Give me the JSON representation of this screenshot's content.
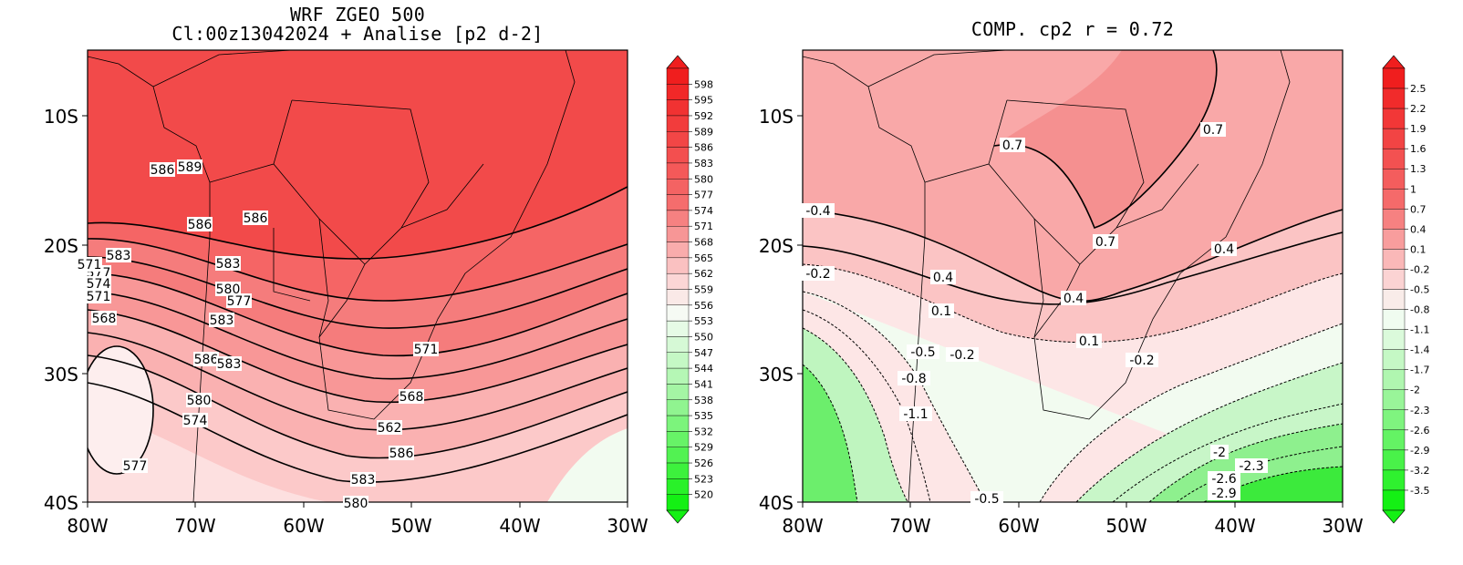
{
  "left_panel": {
    "title_line1": "WRF ZGEO 500",
    "title_line2": "Cl:00z13042024 + Analise  [p2 d-2]",
    "lat_ticks": [
      "10S",
      "20S",
      "30S",
      "40S"
    ],
    "lon_ticks": [
      "80W",
      "70W",
      "60W",
      "50W",
      "40W",
      "30W"
    ],
    "colorbar_labels": [
      "598",
      "595",
      "592",
      "589",
      "586",
      "583",
      "580",
      "577",
      "574",
      "571",
      "568",
      "565",
      "562",
      "559",
      "556",
      "553",
      "550",
      "547",
      "544",
      "541",
      "538",
      "535",
      "532",
      "529",
      "526",
      "523",
      "520"
    ],
    "contour_labels": [
      "586",
      "589",
      "586",
      "586",
      "583",
      "583",
      "580",
      "577",
      "571",
      "568",
      "583",
      "586",
      "583",
      "580",
      "574",
      "577",
      "571",
      "568",
      "562",
      "586",
      "583",
      "580",
      "577",
      "574",
      "571"
    ]
  },
  "right_panel": {
    "title": "COMP. cp2  r =  0.72",
    "lat_ticks": [
      "10S",
      "20S",
      "30S",
      "40S"
    ],
    "lon_ticks": [
      "80W",
      "70W",
      "60W",
      "50W",
      "40W",
      "30W"
    ],
    "colorbar_labels": [
      "2.5",
      "2.2",
      "1.9",
      "1.6",
      "1.3",
      "1",
      "0.7",
      "0.4",
      "0.1",
      "-0.2",
      "-0.5",
      "-0.8",
      "-1.1",
      "-1.4",
      "-1.7",
      "-2",
      "-2.3",
      "-2.6",
      "-2.9",
      "-3.2",
      "-3.5"
    ],
    "contour_labels": [
      "0.7",
      "0.7",
      "-0.4",
      "0.7",
      "0.4",
      "-0.2",
      "0.4",
      "0.4",
      "0.1",
      "0.1",
      "-0.5",
      "-0.2",
      "-0.2",
      "-0.8",
      "-1.1",
      "-2",
      "-2.3",
      "-2.6",
      "-2.9",
      "-0.5"
    ]
  },
  "colors": {
    "high_red": "#f03c3c",
    "mid_red": "#f79a9a",
    "pale": "#fde4e4",
    "pale_green": "#e8fbe8",
    "green": "#28ee28"
  }
}
